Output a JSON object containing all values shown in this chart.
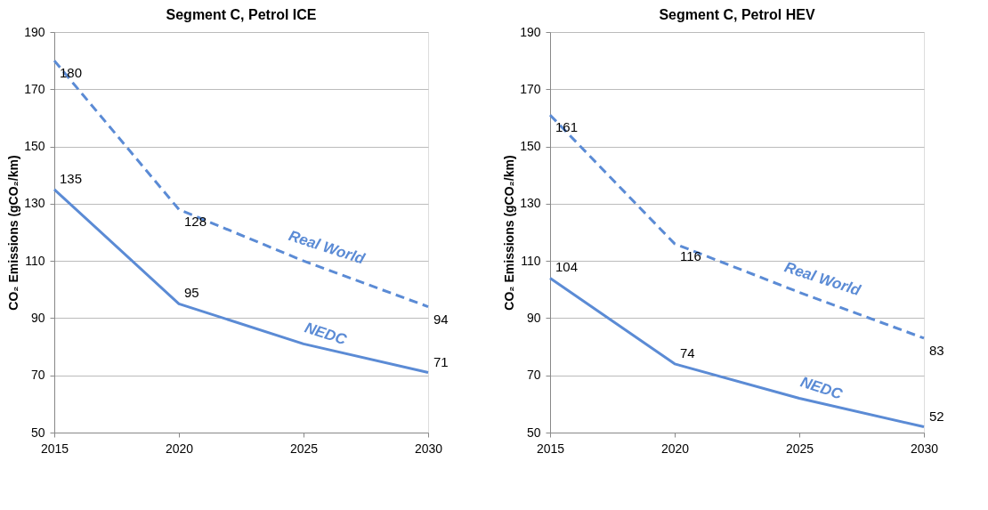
{
  "chart_data": [
    {
      "type": "line",
      "title": "Segment C, Petrol ICE",
      "ylabel": "CO₂ Emissions (gCO₂/km)",
      "x": [
        2015,
        2020,
        2025,
        2030
      ],
      "xlim": [
        2015,
        2030
      ],
      "xticks": [
        2015,
        2020,
        2025,
        2030
      ],
      "ylim": [
        50,
        190
      ],
      "yticks": [
        50,
        70,
        90,
        110,
        130,
        150,
        170,
        190
      ],
      "grid": "y",
      "legend": false,
      "series": [
        {
          "name": "Real World",
          "color": "#5b8bd5",
          "line_style": "dashed",
          "values": [
            180,
            128,
            110,
            94
          ],
          "value_labels": [
            "180",
            "128",
            null,
            "94"
          ]
        },
        {
          "name": "NEDC",
          "color": "#5b8bd5",
          "line_style": "solid",
          "values": [
            135,
            95,
            81,
            71
          ],
          "value_labels": [
            "135",
            "95",
            null,
            "71"
          ]
        }
      ]
    },
    {
      "type": "line",
      "title": "Segment C, Petrol HEV",
      "ylabel": "CO₂ Emissions (gCO₂/km)",
      "x": [
        2015,
        2020,
        2025,
        2030
      ],
      "xlim": [
        2015,
        2030
      ],
      "xticks": [
        2015,
        2020,
        2025,
        2030
      ],
      "ylim": [
        50,
        190
      ],
      "yticks": [
        50,
        70,
        90,
        110,
        130,
        150,
        170,
        190
      ],
      "grid": "y",
      "legend": false,
      "series": [
        {
          "name": "Real World",
          "color": "#5b8bd5",
          "line_style": "dashed",
          "values": [
            161,
            116,
            99,
            83
          ],
          "value_labels": [
            "161",
            "116",
            null,
            "83"
          ]
        },
        {
          "name": "NEDC",
          "color": "#5b8bd5",
          "line_style": "solid",
          "values": [
            104,
            74,
            62,
            52
          ],
          "value_labels": [
            "104",
            "74",
            null,
            "52"
          ]
        }
      ]
    }
  ]
}
